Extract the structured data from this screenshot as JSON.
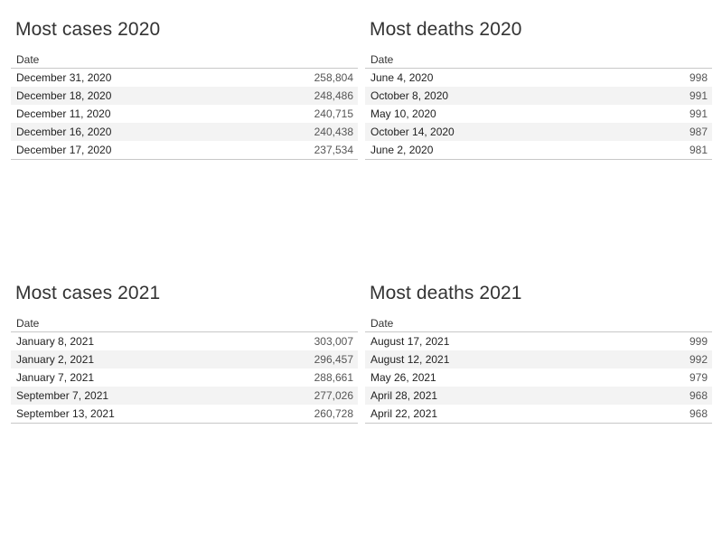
{
  "chart_data": [
    {
      "type": "table",
      "title": "Most cases 2020",
      "column_header": "Date",
      "rows": [
        {
          "date": "December 31, 2020",
          "value": "258,804"
        },
        {
          "date": "December 18, 2020",
          "value": "248,486"
        },
        {
          "date": "December 11, 2020",
          "value": "240,715"
        },
        {
          "date": "December 16, 2020",
          "value": "240,438"
        },
        {
          "date": "December 17, 2020",
          "value": "237,534"
        }
      ]
    },
    {
      "type": "table",
      "title": "Most deaths 2020",
      "column_header": "Date",
      "rows": [
        {
          "date": "June 4, 2020",
          "value": "998"
        },
        {
          "date": "October 8, 2020",
          "value": "991"
        },
        {
          "date": "May 10, 2020",
          "value": "991"
        },
        {
          "date": "October 14, 2020",
          "value": "987"
        },
        {
          "date": "June 2, 2020",
          "value": "981"
        }
      ]
    },
    {
      "type": "table",
      "title": "Most cases 2021",
      "column_header": "Date",
      "rows": [
        {
          "date": "January 8, 2021",
          "value": "303,007"
        },
        {
          "date": "January 2, 2021",
          "value": "296,457"
        },
        {
          "date": "January 7, 2021",
          "value": "288,661"
        },
        {
          "date": "September 7, 2021",
          "value": "277,026"
        },
        {
          "date": "September 13, 2021",
          "value": "260,728"
        }
      ]
    },
    {
      "type": "table",
      "title": "Most deaths 2021",
      "column_header": "Date",
      "rows": [
        {
          "date": "August 17, 2021",
          "value": "999"
        },
        {
          "date": "August 12, 2021",
          "value": "992"
        },
        {
          "date": "May 26, 2021",
          "value": "979"
        },
        {
          "date": "April 28, 2021",
          "value": "968"
        },
        {
          "date": "April 22, 2021",
          "value": "968"
        }
      ]
    }
  ]
}
